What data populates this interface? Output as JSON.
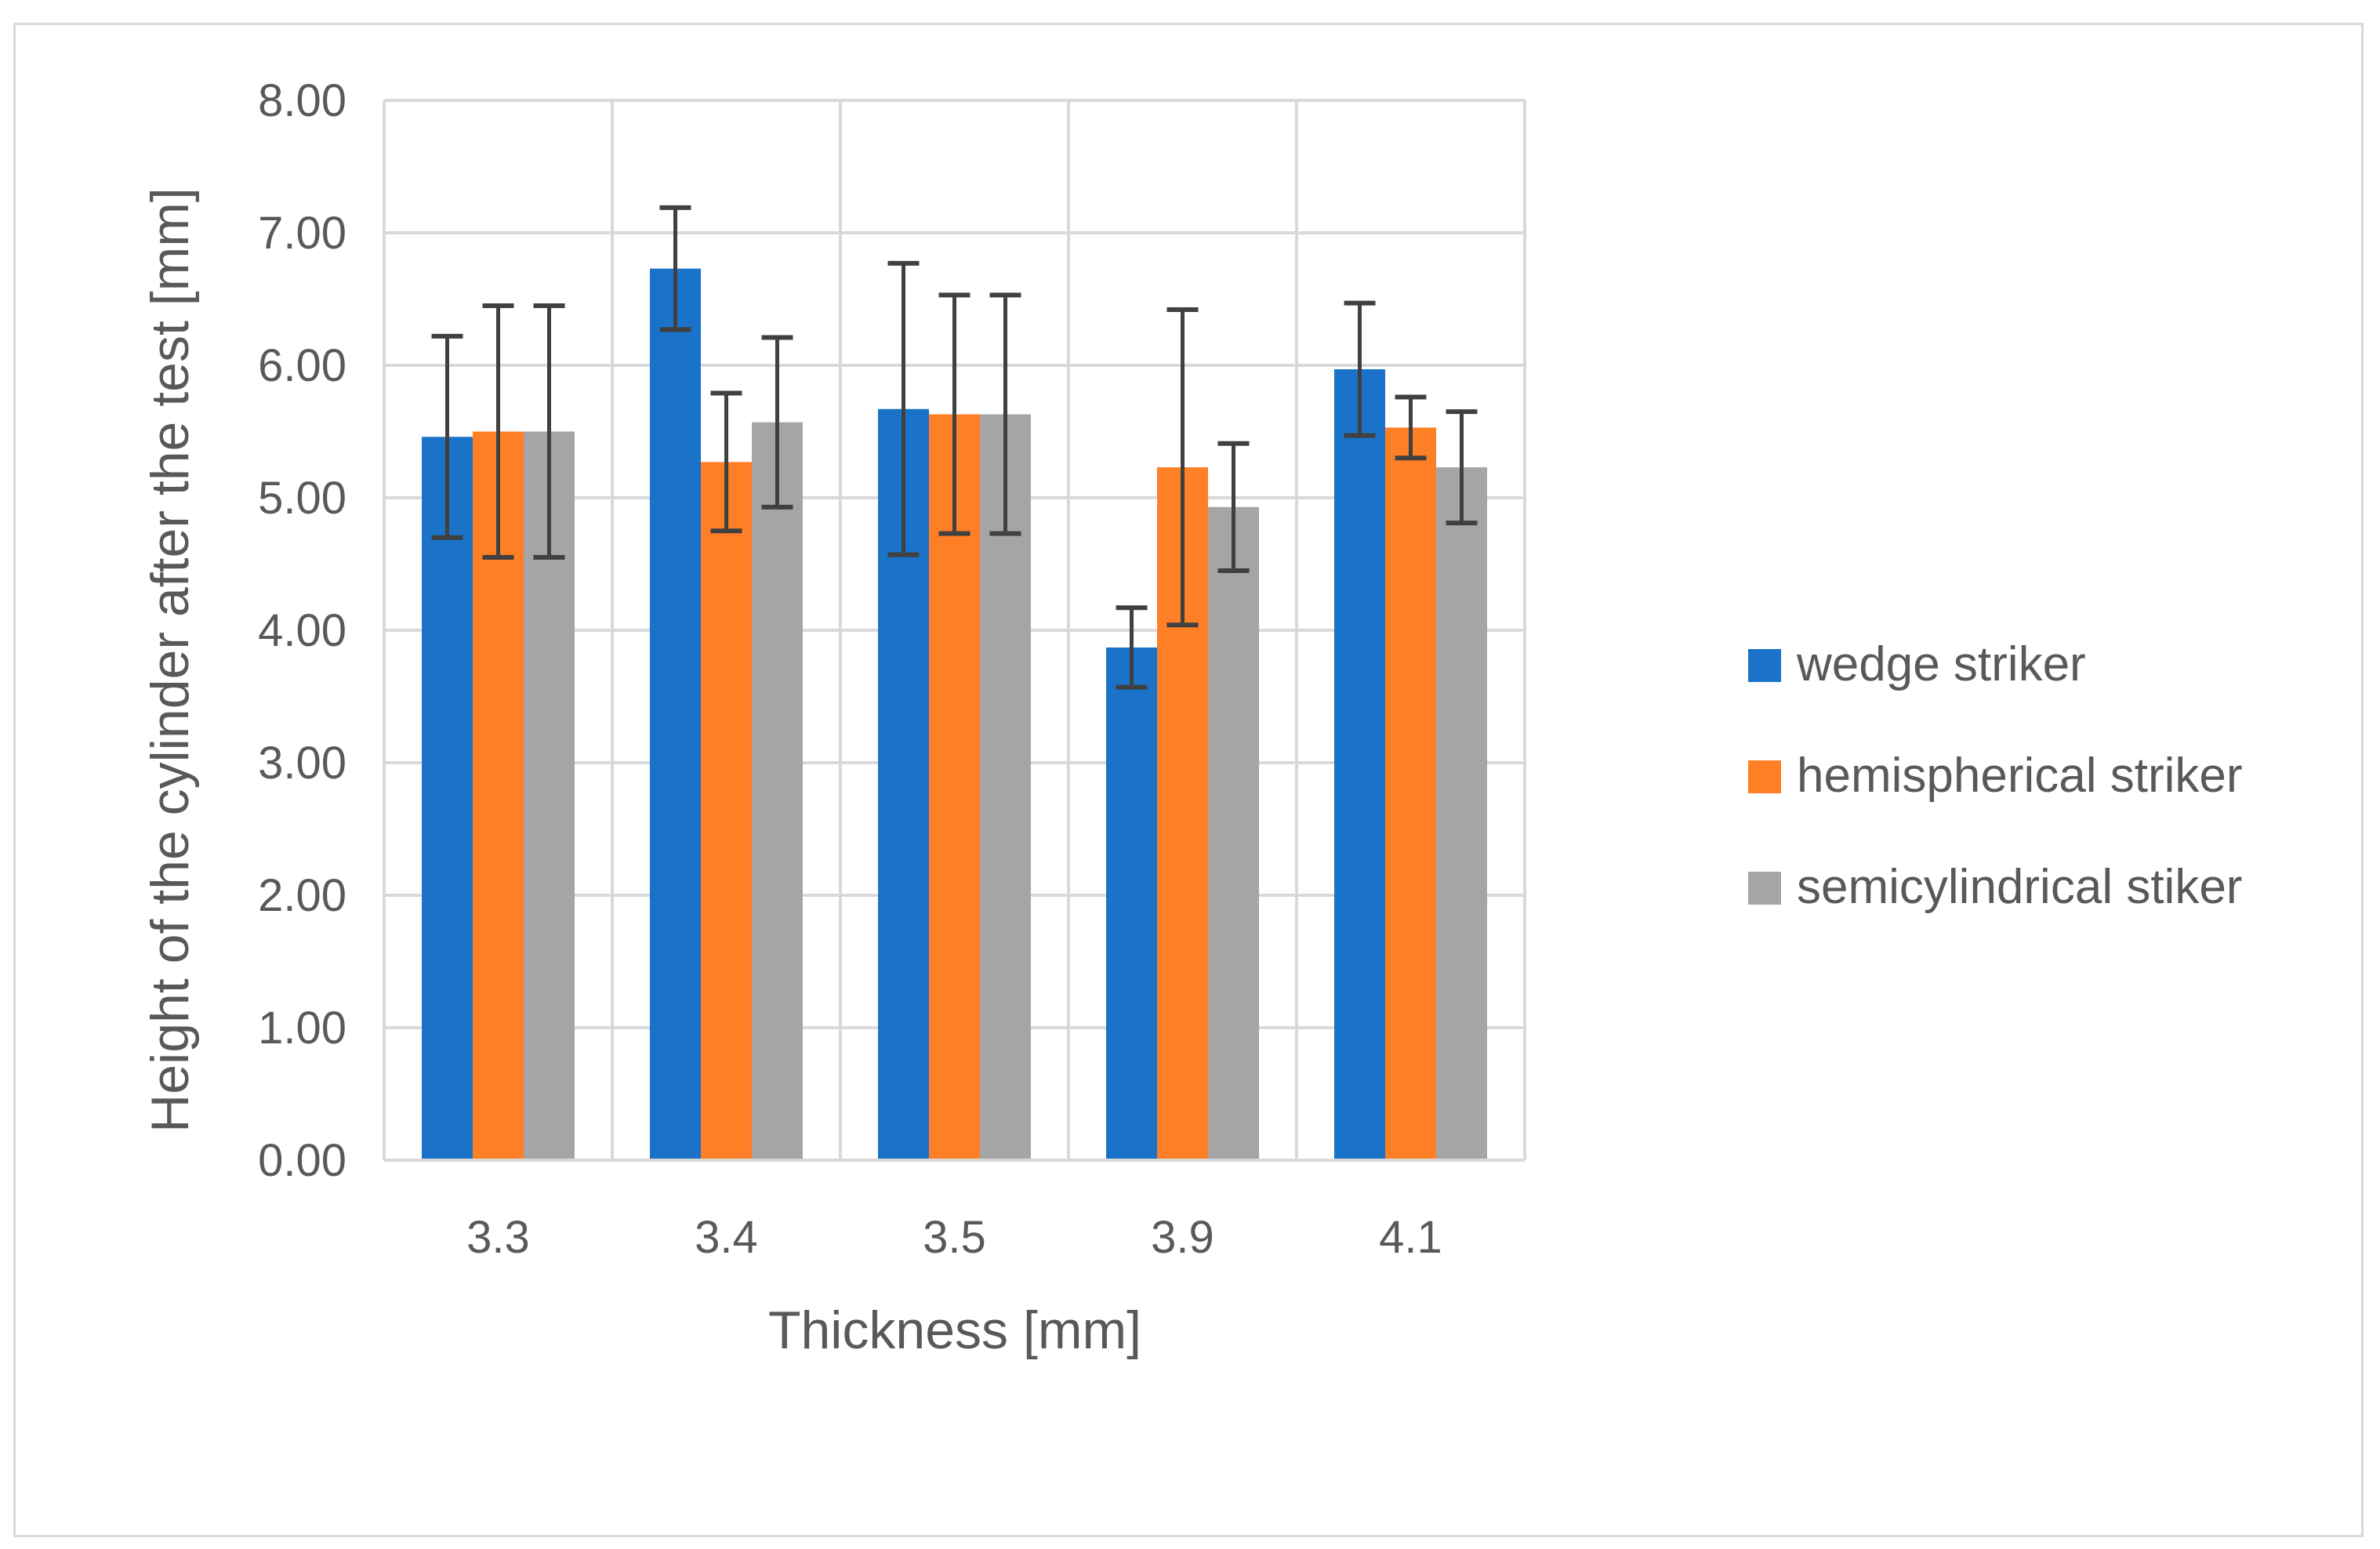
{
  "chart_data": {
    "type": "bar",
    "title": "",
    "xlabel": "Thickness [mm]",
    "ylabel": "Height of the cylinder after the test [mm]",
    "categories": [
      "3.3",
      "3.4",
      "3.5",
      "3.9",
      "4.1"
    ],
    "ylim": [
      0,
      8
    ],
    "yticks": [
      "0.00",
      "1.00",
      "2.00",
      "3.00",
      "4.00",
      "5.00",
      "6.00",
      "7.00",
      "8.00"
    ],
    "grid": true,
    "legend_position": "right",
    "error_bars": true,
    "series": [
      {
        "name": "wedge striker",
        "color": "#1a73c8",
        "values": [
          5.46,
          6.73,
          5.67,
          3.87,
          5.97
        ],
        "error": [
          0.76,
          0.46,
          1.1,
          0.3,
          0.5
        ]
      },
      {
        "name": "hemispherical striker",
        "color": "#ff7f27",
        "values": [
          5.5,
          5.27,
          5.63,
          5.23,
          5.53
        ],
        "error": [
          0.95,
          0.52,
          0.9,
          1.19,
          0.23
        ]
      },
      {
        "name": "semicylindrical stiker",
        "color": "#a5a5a5",
        "values": [
          5.5,
          5.57,
          5.63,
          4.93,
          5.23
        ],
        "error": [
          0.95,
          0.64,
          0.9,
          0.48,
          0.42
        ]
      }
    ]
  }
}
